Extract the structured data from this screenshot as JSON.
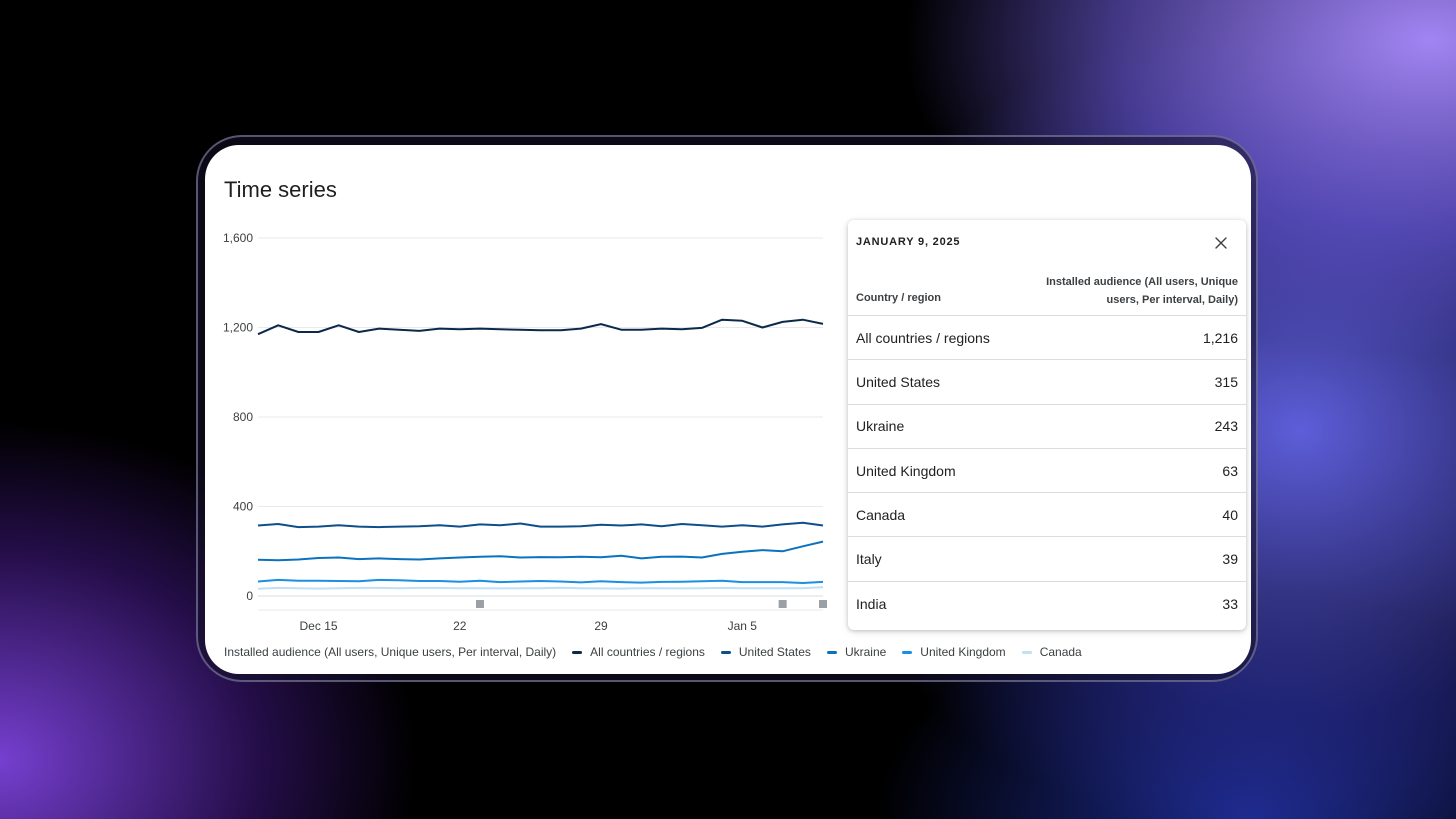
{
  "card": {
    "title": "Time series"
  },
  "chart_data": {
    "type": "line",
    "y_ticks": [
      "1,600",
      "1,200",
      "800",
      "400",
      "0"
    ],
    "ylim": [
      0,
      1600
    ],
    "x_ticks": [
      "Dec 15",
      "22",
      "29",
      "Jan 5"
    ],
    "x_tick_index": [
      3,
      10,
      17,
      24
    ],
    "x_count": 29,
    "metric_label": "Installed audience (All users, Unique users, Per interval, Daily)",
    "series": [
      {
        "name": "All countries / regions",
        "color": "#0b2a4a",
        "values": [
          1170,
          1210,
          1180,
          1180,
          1210,
          1180,
          1195,
          1190,
          1185,
          1195,
          1192,
          1195,
          1192,
          1190,
          1188,
          1188,
          1195,
          1215,
          1190,
          1190,
          1195,
          1192,
          1198,
          1235,
          1230,
          1200,
          1225,
          1235,
          1216
        ]
      },
      {
        "name": "United States",
        "color": "#0d4f8b",
        "values": [
          315,
          322,
          308,
          310,
          316,
          310,
          308,
          310,
          312,
          316,
          310,
          320,
          316,
          324,
          310,
          310,
          312,
          318,
          315,
          320,
          312,
          322,
          316,
          310,
          316,
          310,
          320,
          327,
          315
        ]
      },
      {
        "name": "Ukraine",
        "color": "#0a72bf",
        "values": [
          162,
          160,
          163,
          170,
          172,
          165,
          168,
          165,
          163,
          168,
          172,
          175,
          178,
          172,
          174,
          173,
          175,
          173,
          180,
          168,
          175,
          176,
          172,
          188,
          198,
          205,
          200,
          222,
          243
        ]
      },
      {
        "name": "United Kingdom",
        "color": "#1a8fe3",
        "values": [
          65,
          72,
          68,
          68,
          67,
          66,
          72,
          70,
          67,
          67,
          64,
          68,
          62,
          65,
          67,
          65,
          61,
          66,
          62,
          60,
          63,
          64,
          66,
          68,
          62,
          62,
          62,
          58,
          63
        ]
      },
      {
        "name": "Canada",
        "color": "#bfe0f5",
        "values": [
          32,
          36,
          35,
          33,
          35,
          36,
          36,
          35,
          36,
          36,
          35,
          35,
          34,
          35,
          35,
          37,
          35,
          34,
          33,
          35,
          35,
          34,
          35,
          36,
          35,
          35,
          35,
          35,
          40
        ]
      }
    ]
  },
  "tooltip": {
    "date": "JANUARY 9, 2025",
    "col_region": "Country / region",
    "col_metric": "Installed audience (All users, Unique users, Per interval, Daily)",
    "close_icon": "close-icon",
    "rows": [
      {
        "region": "All countries / regions",
        "value": "1,216"
      },
      {
        "region": "United States",
        "value": "315"
      },
      {
        "region": "Ukraine",
        "value": "243"
      },
      {
        "region": "United Kingdom",
        "value": "63"
      },
      {
        "region": "Canada",
        "value": "40"
      },
      {
        "region": "Italy",
        "value": "39"
      },
      {
        "region": "India",
        "value": "33"
      }
    ]
  }
}
